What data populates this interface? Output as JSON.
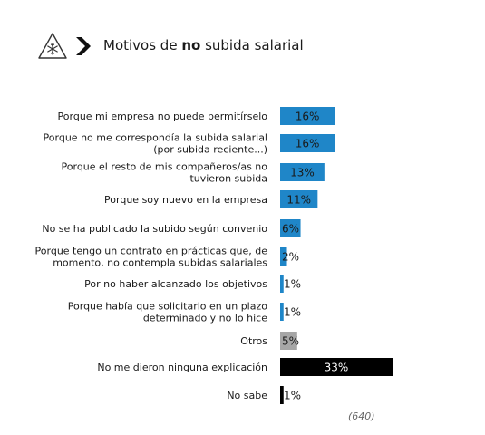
{
  "header": {
    "title_before": "Motivos de ",
    "title_bold": "no",
    "title_after": " subida salarial",
    "icons": [
      "snowflake-warning-icon",
      "chevron-right-icon"
    ]
  },
  "chart_data": {
    "type": "bar",
    "orientation": "horizontal",
    "title": "Motivos de no subida salarial",
    "categories": [
      [
        "Porque mi empresa no puede permitírselo"
      ],
      [
        "Porque no me correspondía la subida salarial",
        "(por subida reciente...)"
      ],
      [
        "Porque el resto de mis compañeros/as no",
        "tuvieron subida"
      ],
      [
        "Porque soy nuevo en la empresa"
      ],
      [
        "No se ha publicado la subido según convenio"
      ],
      [
        "Porque tengo un contrato en prácticas que, de",
        "momento, no contempla subidas salariales"
      ],
      [
        "Por no haber alcanzado los objetivos"
      ],
      [
        "Porque había que solicitarlo en un plazo",
        "determinado y no lo hice"
      ],
      [
        "Otros"
      ],
      [
        "No me dieron ninguna explicación"
      ],
      [
        "No sabe"
      ]
    ],
    "values": [
      16,
      16,
      13,
      11,
      6,
      2,
      1,
      1,
      5,
      33,
      1
    ],
    "value_labels": [
      "16%",
      "16%",
      "13%",
      "11%",
      "6%",
      "2%",
      "1%",
      "1%",
      "5%",
      "33%",
      "1%"
    ],
    "bar_colors": [
      "#1f86c8",
      "#1f86c8",
      "#1f86c8",
      "#1f86c8",
      "#1f86c8",
      "#1f86c8",
      "#1f86c8",
      "#1f86c8",
      "#a6a6a6",
      "#000000",
      "#000000"
    ],
    "xlim": [
      0,
      33
    ],
    "grid": false,
    "legend": "none",
    "sample_note": "(640)"
  }
}
